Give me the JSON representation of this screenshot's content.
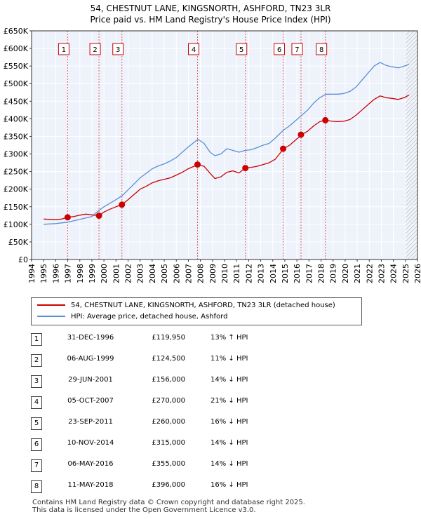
{
  "title_line1": "54, CHESTNUT LANE, KINGSNORTH, ASHFORD, TN23 3LR",
  "title_line2": "Price paid vs. HM Land Registry's House Price Index (HPI)",
  "colors": {
    "property": "#cc0000",
    "hpi": "#5a8fd6",
    "sale_marker_line": "#e06060",
    "future_hatch": "#999999"
  },
  "legend": {
    "property_label": "54, CHESTNUT LANE, KINGSNORTH, ASHFORD, TN23 3LR (detached house)",
    "hpi_label": "HPI: Average price, detached house, Ashford"
  },
  "sales": [
    {
      "num": "1",
      "date": "31-DEC-1996",
      "price": "£119,950",
      "hpi": "13% ↑ HPI"
    },
    {
      "num": "2",
      "date": "06-AUG-1999",
      "price": "£124,500",
      "hpi": "11% ↓ HPI"
    },
    {
      "num": "3",
      "date": "29-JUN-2001",
      "price": "£156,000",
      "hpi": "14% ↓ HPI"
    },
    {
      "num": "4",
      "date": "05-OCT-2007",
      "price": "£270,000",
      "hpi": "21% ↓ HPI"
    },
    {
      "num": "5",
      "date": "23-SEP-2011",
      "price": "£260,000",
      "hpi": "16% ↓ HPI"
    },
    {
      "num": "6",
      "date": "10-NOV-2014",
      "price": "£315,000",
      "hpi": "14% ↓ HPI"
    },
    {
      "num": "7",
      "date": "06-MAY-2016",
      "price": "£355,000",
      "hpi": "14% ↓ HPI"
    },
    {
      "num": "8",
      "date": "11-MAY-2018",
      "price": "£396,000",
      "hpi": "16% ↓ HPI"
    }
  ],
  "footer_line1": "Contains HM Land Registry data © Crown copyright and database right 2025.",
  "footer_line2": "This data is licensed under the Open Government Licence v3.0.",
  "chart_data": {
    "type": "line",
    "title": "54, CHESTNUT LANE, KINGSNORTH, ASHFORD, TN23 3LR",
    "subtitle": "Price paid vs. HM Land Registry's House Price Index (HPI)",
    "xlim": [
      1994,
      2026
    ],
    "ylim": [
      0,
      650000
    ],
    "x_ticks": [
      1994,
      1995,
      1996,
      1997,
      1998,
      1999,
      2000,
      2001,
      2002,
      2003,
      2004,
      2005,
      2006,
      2007,
      2008,
      2009,
      2010,
      2011,
      2012,
      2013,
      2014,
      2015,
      2016,
      2017,
      2018,
      2019,
      2020,
      2021,
      2022,
      2023,
      2024,
      2025,
      2026
    ],
    "y_ticks": [
      0,
      50000,
      100000,
      150000,
      200000,
      250000,
      300000,
      350000,
      400000,
      450000,
      500000,
      550000,
      600000,
      650000
    ],
    "y_tick_labels": [
      "£0",
      "£50K",
      "£100K",
      "£150K",
      "£200K",
      "£250K",
      "£300K",
      "£350K",
      "£400K",
      "£450K",
      "£500K",
      "£550K",
      "£600K",
      "£650K"
    ],
    "grid": true,
    "future_hatch_from": 2025.0,
    "series": [
      {
        "name": "54, CHESTNUT LANE, KINGSNORTH, ASHFORD, TN23 3LR (detached house)",
        "x": [
          1995.0,
          1995.5,
          1996.0,
          1996.5,
          1997.0,
          1997.5,
          1998.0,
          1998.5,
          1999.0,
          1999.6,
          2000.0,
          2000.5,
          2001.0,
          2001.5,
          2002.0,
          2002.5,
          2003.0,
          2003.5,
          2004.0,
          2004.5,
          2005.0,
          2005.5,
          2006.0,
          2006.5,
          2007.0,
          2007.8,
          2008.3,
          2008.8,
          2009.2,
          2009.7,
          2010.2,
          2010.7,
          2011.2,
          2011.7,
          2012.2,
          2012.7,
          2013.2,
          2013.7,
          2014.2,
          2014.9,
          2015.4,
          2015.9,
          2016.4,
          2016.9,
          2017.4,
          2017.9,
          2018.4,
          2018.9,
          2019.4,
          2019.9,
          2020.4,
          2020.9,
          2021.4,
          2021.9,
          2022.4,
          2022.9,
          2023.4,
          2023.9,
          2024.4,
          2024.9,
          2025.3
        ],
        "y": [
          115000,
          114000,
          113000,
          115000,
          119950,
          122000,
          126000,
          129000,
          127000,
          124500,
          135000,
          143000,
          150000,
          156000,
          170000,
          185000,
          200000,
          208000,
          218000,
          224000,
          228000,
          232000,
          240000,
          248000,
          258000,
          270000,
          265000,
          245000,
          230000,
          235000,
          248000,
          252000,
          246000,
          260000,
          262000,
          265000,
          270000,
          275000,
          285000,
          315000,
          325000,
          340000,
          355000,
          365000,
          380000,
          392000,
          396000,
          393000,
          392000,
          393000,
          398000,
          410000,
          425000,
          440000,
          455000,
          465000,
          460000,
          458000,
          455000,
          460000,
          468000
        ]
      },
      {
        "name": "HPI: Average price, detached house, Ashford",
        "x": [
          1995.0,
          1995.5,
          1996.0,
          1996.5,
          1997.0,
          1997.5,
          1998.0,
          1998.5,
          1999.0,
          1999.6,
          2000.0,
          2000.5,
          2001.0,
          2001.5,
          2002.0,
          2002.5,
          2003.0,
          2003.5,
          2004.0,
          2004.5,
          2005.0,
          2005.5,
          2006.0,
          2006.5,
          2007.0,
          2007.8,
          2008.3,
          2008.8,
          2009.2,
          2009.7,
          2010.2,
          2010.7,
          2011.2,
          2011.7,
          2012.2,
          2012.7,
          2013.2,
          2013.7,
          2014.2,
          2014.9,
          2015.4,
          2015.9,
          2016.4,
          2016.9,
          2017.4,
          2017.9,
          2018.4,
          2018.9,
          2019.4,
          2019.9,
          2020.4,
          2020.9,
          2021.4,
          2021.9,
          2022.4,
          2022.9,
          2023.4,
          2023.9,
          2024.4,
          2024.9,
          2025.3
        ],
        "y": [
          100000,
          101000,
          102000,
          104000,
          106000,
          110000,
          114000,
          118000,
          122000,
          140000,
          150000,
          160000,
          170000,
          181000,
          198000,
          215000,
          232000,
          245000,
          258000,
          266000,
          272000,
          280000,
          290000,
          305000,
          320000,
          342000,
          330000,
          305000,
          295000,
          300000,
          315000,
          310000,
          305000,
          310000,
          312000,
          318000,
          325000,
          330000,
          345000,
          368000,
          380000,
          395000,
          410000,
          425000,
          445000,
          460000,
          470000,
          470000,
          470000,
          472000,
          478000,
          490000,
          510000,
          530000,
          550000,
          560000,
          552000,
          548000,
          545000,
          550000,
          555000
        ]
      }
    ],
    "sales": [
      {
        "label": "1",
        "x": 1996.99,
        "y": 119950
      },
      {
        "label": "2",
        "x": 1999.59,
        "y": 124500
      },
      {
        "label": "3",
        "x": 2001.49,
        "y": 156000
      },
      {
        "label": "4",
        "x": 2007.76,
        "y": 270000
      },
      {
        "label": "5",
        "x": 2011.73,
        "y": 260000
      },
      {
        "label": "6",
        "x": 2014.86,
        "y": 315000
      },
      {
        "label": "7",
        "x": 2016.34,
        "y": 355000
      },
      {
        "label": "8",
        "x": 2018.36,
        "y": 396000
      }
    ],
    "legend_position": "below"
  }
}
